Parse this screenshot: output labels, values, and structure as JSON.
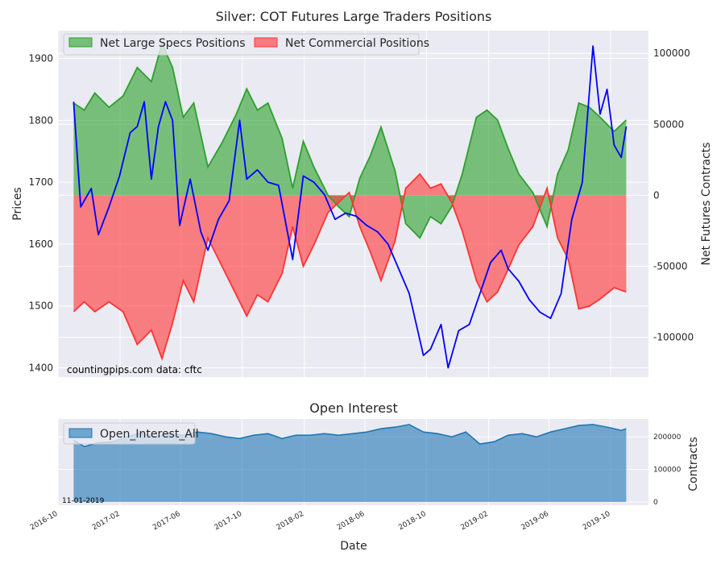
{
  "chart_data": [
    {
      "type": "area",
      "title": "Silver: COT Futures Large Traders Positions",
      "ylabel_left": "Prices",
      "ylabel_right": "Net Futures Contracts",
      "ylim_left": [
        1385,
        1945
      ],
      "ylim_right": [
        -128000,
        116000
      ],
      "yticks_left": [
        "1400",
        "1500",
        "1600",
        "1700",
        "1800",
        "1900"
      ],
      "yticks_right": [
        "-100000",
        "-50000",
        "0",
        "50000",
        "100000"
      ],
      "x_range": [
        "2016-10-01",
        "2019-12-15"
      ],
      "xticks": [
        "2016-10",
        "2017-02",
        "2017-06",
        "2017-10",
        "2018-02",
        "2018-06",
        "2018-10",
        "2019-02",
        "2019-06",
        "2019-10"
      ],
      "grid": true,
      "legend_placement": "top-left",
      "series": [
        {
          "name": "Net Large Specs Positions",
          "color": "#2ca02c",
          "axis": "right",
          "points": [
            [
              "2016-11-01",
              65000
            ],
            [
              "2016-11-22",
              60000
            ],
            [
              "2016-12-13",
              72000
            ],
            [
              "2017-01-10",
              62000
            ],
            [
              "2017-02-07",
              70000
            ],
            [
              "2017-03-07",
              90000
            ],
            [
              "2017-04-04",
              80000
            ],
            [
              "2017-04-25",
              107000
            ],
            [
              "2017-05-16",
              90000
            ],
            [
              "2017-06-06",
              55000
            ],
            [
              "2017-06-27",
              65000
            ],
            [
              "2017-07-25",
              20000
            ],
            [
              "2017-08-22",
              37000
            ],
            [
              "2017-09-19",
              57000
            ],
            [
              "2017-10-10",
              75000
            ],
            [
              "2017-10-31",
              60000
            ],
            [
              "2017-11-21",
              65000
            ],
            [
              "2017-12-19",
              40000
            ],
            [
              "2018-01-09",
              5000
            ],
            [
              "2018-01-30",
              38000
            ],
            [
              "2018-02-20",
              20000
            ],
            [
              "2018-03-20",
              0
            ],
            [
              "2018-04-10",
              -8000
            ],
            [
              "2018-05-01",
              -15000
            ],
            [
              "2018-05-22",
              12000
            ],
            [
              "2018-06-12",
              28000
            ],
            [
              "2018-07-03",
              48000
            ],
            [
              "2018-07-31",
              17000
            ],
            [
              "2018-08-21",
              -20000
            ],
            [
              "2018-09-18",
              -30000
            ],
            [
              "2018-10-09",
              -15000
            ],
            [
              "2018-10-30",
              -20000
            ],
            [
              "2018-11-20",
              -8000
            ],
            [
              "2018-12-11",
              15000
            ],
            [
              "2019-01-08",
              55000
            ],
            [
              "2019-01-29",
              60000
            ],
            [
              "2019-02-19",
              53000
            ],
            [
              "2019-03-12",
              33000
            ],
            [
              "2019-04-02",
              15000
            ],
            [
              "2019-04-30",
              2000
            ],
            [
              "2019-05-28",
              -22000
            ],
            [
              "2019-06-18",
              15000
            ],
            [
              "2019-07-09",
              32000
            ],
            [
              "2019-07-30",
              65000
            ],
            [
              "2019-08-20",
              62000
            ],
            [
              "2019-09-10",
              55000
            ],
            [
              "2019-10-08",
              45000
            ],
            [
              "2019-11-01",
              53000
            ]
          ]
        },
        {
          "name": "Net Commercial Positions",
          "color": "#ff3333",
          "axis": "right",
          "points": [
            [
              "2016-11-01",
              -82000
            ],
            [
              "2016-11-22",
              -75000
            ],
            [
              "2016-12-13",
              -82000
            ],
            [
              "2017-01-10",
              -75000
            ],
            [
              "2017-02-07",
              -82000
            ],
            [
              "2017-03-07",
              -105000
            ],
            [
              "2017-04-04",
              -95000
            ],
            [
              "2017-04-25",
              -115000
            ],
            [
              "2017-05-16",
              -90000
            ],
            [
              "2017-06-06",
              -60000
            ],
            [
              "2017-06-27",
              -75000
            ],
            [
              "2017-07-25",
              -30000
            ],
            [
              "2017-08-22",
              -50000
            ],
            [
              "2017-09-19",
              -70000
            ],
            [
              "2017-10-10",
              -85000
            ],
            [
              "2017-10-31",
              -70000
            ],
            [
              "2017-11-21",
              -75000
            ],
            [
              "2017-12-19",
              -55000
            ],
            [
              "2018-01-09",
              -22000
            ],
            [
              "2018-01-30",
              -50000
            ],
            [
              "2018-02-20",
              -35000
            ],
            [
              "2018-03-20",
              -12000
            ],
            [
              "2018-04-10",
              -5000
            ],
            [
              "2018-05-01",
              2000
            ],
            [
              "2018-05-22",
              -22000
            ],
            [
              "2018-06-12",
              -40000
            ],
            [
              "2018-07-03",
              -60000
            ],
            [
              "2018-07-31",
              -32000
            ],
            [
              "2018-08-21",
              5000
            ],
            [
              "2018-09-18",
              15000
            ],
            [
              "2018-10-09",
              5000
            ],
            [
              "2018-10-30",
              8000
            ],
            [
              "2018-11-20",
              -5000
            ],
            [
              "2018-12-11",
              -25000
            ],
            [
              "2019-01-08",
              -60000
            ],
            [
              "2019-01-29",
              -75000
            ],
            [
              "2019-02-19",
              -68000
            ],
            [
              "2019-03-12",
              -52000
            ],
            [
              "2019-04-02",
              -35000
            ],
            [
              "2019-04-30",
              -22000
            ],
            [
              "2019-05-28",
              5000
            ],
            [
              "2019-06-18",
              -30000
            ],
            [
              "2019-07-09",
              -45000
            ],
            [
              "2019-07-30",
              -80000
            ],
            [
              "2019-08-20",
              -78000
            ],
            [
              "2019-09-10",
              -73000
            ],
            [
              "2019-10-08",
              -65000
            ],
            [
              "2019-11-01",
              -68000
            ]
          ]
        },
        {
          "name": "",
          "color": "#0000ff",
          "axis": "left",
          "points": [
            [
              "2016-11-01",
              1830
            ],
            [
              "2016-11-15",
              1660
            ],
            [
              "2016-12-06",
              1690
            ],
            [
              "2016-12-20",
              1615
            ],
            [
              "2017-01-10",
              1660
            ],
            [
              "2017-01-31",
              1710
            ],
            [
              "2017-02-21",
              1780
            ],
            [
              "2017-03-07",
              1790
            ],
            [
              "2017-03-21",
              1830
            ],
            [
              "2017-04-04",
              1705
            ],
            [
              "2017-04-18",
              1790
            ],
            [
              "2017-05-02",
              1830
            ],
            [
              "2017-05-16",
              1800
            ],
            [
              "2017-05-30",
              1630
            ],
            [
              "2017-06-20",
              1705
            ],
            [
              "2017-07-11",
              1620
            ],
            [
              "2017-07-25",
              1590
            ],
            [
              "2017-08-15",
              1640
            ],
            [
              "2017-09-05",
              1670
            ],
            [
              "2017-09-26",
              1800
            ],
            [
              "2017-10-10",
              1705
            ],
            [
              "2017-10-31",
              1720
            ],
            [
              "2017-11-21",
              1700
            ],
            [
              "2017-12-12",
              1695
            ],
            [
              "2018-01-09",
              1575
            ],
            [
              "2018-01-30",
              1710
            ],
            [
              "2018-02-20",
              1700
            ],
            [
              "2018-03-13",
              1680
            ],
            [
              "2018-04-03",
              1640
            ],
            [
              "2018-04-24",
              1650
            ],
            [
              "2018-05-15",
              1645
            ],
            [
              "2018-06-05",
              1630
            ],
            [
              "2018-06-26",
              1620
            ],
            [
              "2018-07-17",
              1600
            ],
            [
              "2018-08-07",
              1560
            ],
            [
              "2018-08-28",
              1520
            ],
            [
              "2018-09-11",
              1470
            ],
            [
              "2018-09-25",
              1420
            ],
            [
              "2018-10-09",
              1430
            ],
            [
              "2018-10-30",
              1470
            ],
            [
              "2018-11-13",
              1400
            ],
            [
              "2018-12-04",
              1460
            ],
            [
              "2018-12-25",
              1470
            ],
            [
              "2019-01-15",
              1520
            ],
            [
              "2019-02-05",
              1570
            ],
            [
              "2019-02-26",
              1590
            ],
            [
              "2019-03-12",
              1560
            ],
            [
              "2019-04-02",
              1540
            ],
            [
              "2019-04-23",
              1510
            ],
            [
              "2019-05-14",
              1490
            ],
            [
              "2019-06-04",
              1480
            ],
            [
              "2019-06-25",
              1520
            ],
            [
              "2019-07-16",
              1640
            ],
            [
              "2019-08-06",
              1700
            ],
            [
              "2019-08-27",
              1920
            ],
            [
              "2019-09-10",
              1810
            ],
            [
              "2019-09-24",
              1850
            ],
            [
              "2019-10-08",
              1760
            ],
            [
              "2019-10-22",
              1740
            ],
            [
              "2019-11-01",
              1790
            ]
          ]
        }
      ],
      "annotations": [
        "countingpips.com",
        "data: cftc"
      ]
    },
    {
      "type": "area",
      "title": "Open Interest",
      "xlabel": "Date",
      "ylabel": "Contracts",
      "ylim": [
        -10000,
        255000
      ],
      "yticks": [
        "0",
        "100000",
        "200000"
      ],
      "x_range": [
        "2016-10-01",
        "2019-12-15"
      ],
      "xticks": [
        "2016-10",
        "2017-02",
        "2017-06",
        "2017-10",
        "2018-02",
        "2018-06",
        "2018-10",
        "2019-02",
        "2019-06",
        "2019-10"
      ],
      "grid": true,
      "legend_placement": "top-left",
      "series": [
        {
          "name": "Open_Interest_All",
          "color": "#1f77b4",
          "points": [
            [
              "2016-11-01",
              190000
            ],
            [
              "2016-11-22",
              170000
            ],
            [
              "2016-12-20",
              182000
            ],
            [
              "2017-01-17",
              185000
            ],
            [
              "2017-02-14",
              200000
            ],
            [
              "2017-03-14",
              212000
            ],
            [
              "2017-04-11",
              200000
            ],
            [
              "2017-05-09",
              210000
            ],
            [
              "2017-06-06",
              205000
            ],
            [
              "2017-07-04",
              215000
            ],
            [
              "2017-08-01",
              210000
            ],
            [
              "2017-08-29",
              200000
            ],
            [
              "2017-09-26",
              195000
            ],
            [
              "2017-10-24",
              205000
            ],
            [
              "2017-11-21",
              210000
            ],
            [
              "2017-12-19",
              195000
            ],
            [
              "2018-01-16",
              205000
            ],
            [
              "2018-02-13",
              205000
            ],
            [
              "2018-03-13",
              210000
            ],
            [
              "2018-04-10",
              205000
            ],
            [
              "2018-05-08",
              210000
            ],
            [
              "2018-06-05",
              215000
            ],
            [
              "2018-07-03",
              225000
            ],
            [
              "2018-07-31",
              230000
            ],
            [
              "2018-08-28",
              238000
            ],
            [
              "2018-09-25",
              215000
            ],
            [
              "2018-10-23",
              210000
            ],
            [
              "2018-11-20",
              200000
            ],
            [
              "2018-12-18",
              215000
            ],
            [
              "2019-01-15",
              178000
            ],
            [
              "2019-02-12",
              185000
            ],
            [
              "2019-03-12",
              205000
            ],
            [
              "2019-04-09",
              210000
            ],
            [
              "2019-05-07",
              200000
            ],
            [
              "2019-06-04",
              215000
            ],
            [
              "2019-07-02",
              225000
            ],
            [
              "2019-07-30",
              235000
            ],
            [
              "2019-08-27",
              238000
            ],
            [
              "2019-09-24",
              230000
            ],
            [
              "2019-10-22",
              220000
            ],
            [
              "2019-11-01",
              225000
            ]
          ]
        }
      ],
      "annotations": [
        "11-01-2019"
      ]
    }
  ]
}
